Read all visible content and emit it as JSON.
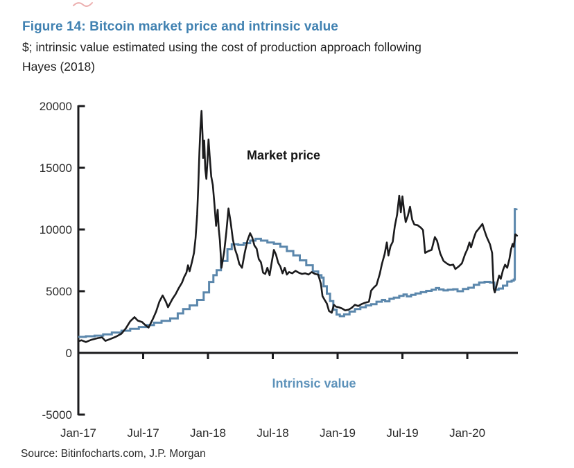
{
  "figure": {
    "title": "Figure 14: Bitcoin market price and intrinsic value",
    "subtitle_line1": "$; intrinsic value estimated using the cost of production approach following",
    "subtitle_line2": "Hayes (2018)",
    "source": "Source: Bitinfocharts.com, J.P. Morgan"
  },
  "colors": {
    "title_blue": "#4081b1",
    "market_price_line": "#1b1b1d",
    "intrinsic_value_line": "#5b87ac",
    "intrinsic_label_blue": "#5d92ba",
    "axis": "#1b1b1d",
    "text": "#2a2a2a",
    "scribble_red": "#dc7070"
  },
  "chart_data": {
    "type": "line",
    "title": "Figure 14: Bitcoin market price and intrinsic value",
    "subtitle": "$; intrinsic value estimated using the cost of production approach following Hayes (2018)",
    "unit": "$",
    "x_unit": "months since Jan-2017",
    "x_tick_months": [
      0,
      6,
      12,
      18,
      24,
      30,
      36
    ],
    "x_tick_labels": [
      "Jan-17",
      "Jul-17",
      "Jan-18",
      "Jul-18",
      "Jan-19",
      "Jul-19",
      "Jan-20"
    ],
    "x_end_month": 40.7,
    "y_ticks": [
      20000,
      15000,
      10000,
      5000,
      0,
      -5000
    ],
    "y_tick_labels": [
      "20000",
      "15000",
      "10000",
      "5000",
      "0",
      "-5000"
    ],
    "ylim": [
      -5000,
      20000
    ],
    "grid": false,
    "legend_position": "inline labels on plot",
    "annotations": [
      {
        "text": "Market price",
        "x_month": 15.6,
        "y_value": 15700,
        "color": "#151515"
      },
      {
        "text": "Intrinsic value",
        "x_month": 21.8,
        "y_value": -2810,
        "color": "#5d92ba"
      }
    ],
    "series": [
      {
        "name": "Market price",
        "color": "#1b1b1d",
        "style": "line",
        "points": [
          [
            0,
            950
          ],
          [
            0.3,
            1020
          ],
          [
            0.7,
            880
          ],
          [
            1.2,
            1060
          ],
          [
            1.8,
            1200
          ],
          [
            2.2,
            1260
          ],
          [
            2.5,
            980
          ],
          [
            3,
            1140
          ],
          [
            3.5,
            1320
          ],
          [
            4,
            1560
          ],
          [
            4.4,
            2000
          ],
          [
            4.8,
            2560
          ],
          [
            5.2,
            2900
          ],
          [
            5.5,
            2620
          ],
          [
            5.9,
            2500
          ],
          [
            6.2,
            2250
          ],
          [
            6.5,
            2050
          ],
          [
            6.9,
            2750
          ],
          [
            7.2,
            3350
          ],
          [
            7.5,
            4150
          ],
          [
            7.8,
            4660
          ],
          [
            8.1,
            4160
          ],
          [
            8.3,
            3700
          ],
          [
            8.7,
            4360
          ],
          [
            9,
            4760
          ],
          [
            9.3,
            5260
          ],
          [
            9.6,
            5700
          ],
          [
            9.8,
            6160
          ],
          [
            10,
            6500
          ],
          [
            10.15,
            7100
          ],
          [
            10.3,
            6620
          ],
          [
            10.5,
            7300
          ],
          [
            10.7,
            8100
          ],
          [
            10.85,
            9300
          ],
          [
            11,
            11200
          ],
          [
            11.1,
            13500
          ],
          [
            11.2,
            16200
          ],
          [
            11.3,
            18200
          ],
          [
            11.4,
            19600
          ],
          [
            11.5,
            17600
          ],
          [
            11.55,
            15800
          ],
          [
            11.65,
            17200
          ],
          [
            11.75,
            14900
          ],
          [
            11.85,
            14100
          ],
          [
            11.95,
            15500
          ],
          [
            12.05,
            17300
          ],
          [
            12.15,
            16000
          ],
          [
            12.3,
            14300
          ],
          [
            12.45,
            13600
          ],
          [
            12.6,
            12000
          ],
          [
            12.75,
            10300
          ],
          [
            12.9,
            11600
          ],
          [
            13,
            10000
          ],
          [
            13.1,
            9100
          ],
          [
            13.25,
            6900
          ],
          [
            13.5,
            8200
          ],
          [
            13.7,
            9800
          ],
          [
            13.9,
            11700
          ],
          [
            14.1,
            10600
          ],
          [
            14.3,
            9200
          ],
          [
            14.5,
            8400
          ],
          [
            14.7,
            7900
          ],
          [
            14.9,
            7200
          ],
          [
            15.15,
            6900
          ],
          [
            15.4,
            8100
          ],
          [
            15.65,
            9100
          ],
          [
            15.9,
            9700
          ],
          [
            16.1,
            9350
          ],
          [
            16.3,
            8700
          ],
          [
            16.5,
            8450
          ],
          [
            16.7,
            7600
          ],
          [
            16.9,
            7350
          ],
          [
            17.1,
            6500
          ],
          [
            17.3,
            6400
          ],
          [
            17.5,
            6900
          ],
          [
            17.7,
            6300
          ],
          [
            17.9,
            7350
          ],
          [
            18.1,
            8350
          ],
          [
            18.3,
            7950
          ],
          [
            18.5,
            7300
          ],
          [
            18.7,
            7000
          ],
          [
            18.9,
            6450
          ],
          [
            19.1,
            6900
          ],
          [
            19.3,
            6350
          ],
          [
            19.5,
            6550
          ],
          [
            19.8,
            6450
          ],
          [
            20.1,
            6650
          ],
          [
            20.4,
            6500
          ],
          [
            20.7,
            6400
          ],
          [
            21,
            6450
          ],
          [
            21.3,
            6350
          ],
          [
            21.6,
            6550
          ],
          [
            21.9,
            6400
          ],
          [
            22.2,
            6350
          ],
          [
            22.45,
            5600
          ],
          [
            22.6,
            4600
          ],
          [
            22.8,
            4300
          ],
          [
            23,
            4000
          ],
          [
            23.2,
            3400
          ],
          [
            23.45,
            3250
          ],
          [
            23.65,
            3900
          ],
          [
            23.85,
            3750
          ],
          [
            24.1,
            3700
          ],
          [
            24.4,
            3600
          ],
          [
            24.7,
            3450
          ],
          [
            25,
            3500
          ],
          [
            25.3,
            3650
          ],
          [
            25.6,
            3900
          ],
          [
            25.9,
            3800
          ],
          [
            26.2,
            3950
          ],
          [
            26.5,
            4050
          ],
          [
            26.9,
            4150
          ],
          [
            27.1,
            5050
          ],
          [
            27.35,
            5300
          ],
          [
            27.6,
            5500
          ],
          [
            27.9,
            6400
          ],
          [
            28.1,
            7200
          ],
          [
            28.35,
            8000
          ],
          [
            28.55,
            8950
          ],
          [
            28.7,
            7900
          ],
          [
            28.9,
            8650
          ],
          [
            29.1,
            9000
          ],
          [
            29.3,
            10300
          ],
          [
            29.5,
            11200
          ],
          [
            29.7,
            12740
          ],
          [
            29.85,
            11400
          ],
          [
            30,
            12680
          ],
          [
            30.15,
            11500
          ],
          [
            30.3,
            10600
          ],
          [
            30.5,
            11100
          ],
          [
            30.7,
            11850
          ],
          [
            30.9,
            10800
          ],
          [
            31.1,
            10400
          ],
          [
            31.4,
            10350
          ],
          [
            31.7,
            10150
          ],
          [
            31.9,
            9950
          ],
          [
            32.1,
            8100
          ],
          [
            32.4,
            8250
          ],
          [
            32.7,
            8350
          ],
          [
            33,
            9390
          ],
          [
            33.2,
            9100
          ],
          [
            33.5,
            8050
          ],
          [
            33.8,
            7450
          ],
          [
            34.1,
            7250
          ],
          [
            34.4,
            7100
          ],
          [
            34.7,
            7150
          ],
          [
            34.9,
            6800
          ],
          [
            35.2,
            7000
          ],
          [
            35.5,
            7260
          ],
          [
            35.8,
            8000
          ],
          [
            36,
            8400
          ],
          [
            36.2,
            8950
          ],
          [
            36.35,
            8550
          ],
          [
            36.6,
            9300
          ],
          [
            36.8,
            9780
          ],
          [
            37.1,
            10100
          ],
          [
            37.4,
            10450
          ],
          [
            37.6,
            9890
          ],
          [
            37.8,
            9390
          ],
          [
            38.1,
            8800
          ],
          [
            38.3,
            8100
          ],
          [
            38.45,
            5200
          ],
          [
            38.55,
            4900
          ],
          [
            38.75,
            5600
          ],
          [
            38.95,
            6260
          ],
          [
            39.1,
            6000
          ],
          [
            39.3,
            6700
          ],
          [
            39.5,
            7150
          ],
          [
            39.7,
            6900
          ],
          [
            39.9,
            7600
          ],
          [
            40.05,
            8400
          ],
          [
            40.2,
            8830
          ],
          [
            40.3,
            8600
          ],
          [
            40.45,
            9610
          ],
          [
            40.6,
            9500
          ]
        ]
      },
      {
        "name": "Intrinsic value",
        "color": "#5b87ac",
        "style": "step",
        "points": [
          [
            0,
            1300
          ],
          [
            0.7,
            1350
          ],
          [
            1.5,
            1400
          ],
          [
            2.3,
            1500
          ],
          [
            3.1,
            1650
          ],
          [
            4,
            1800
          ],
          [
            4.8,
            1950
          ],
          [
            5.6,
            2100
          ],
          [
            6.3,
            2250
          ],
          [
            7,
            2450
          ],
          [
            7.7,
            2600
          ],
          [
            8.5,
            2800
          ],
          [
            9.2,
            3200
          ],
          [
            9.7,
            3550
          ],
          [
            10.3,
            3850
          ],
          [
            11,
            4300
          ],
          [
            11.6,
            4900
          ],
          [
            12.1,
            5750
          ],
          [
            12.5,
            6300
          ],
          [
            12.8,
            6700
          ],
          [
            13.2,
            7450
          ],
          [
            13.8,
            8400
          ],
          [
            14.2,
            8800
          ],
          [
            14.8,
            8750
          ],
          [
            15.3,
            8900
          ],
          [
            15.9,
            9100
          ],
          [
            16.4,
            9250
          ],
          [
            16.9,
            9100
          ],
          [
            17.5,
            8950
          ],
          [
            18.1,
            8850
          ],
          [
            18.7,
            8600
          ],
          [
            19.3,
            8250
          ],
          [
            19.9,
            7900
          ],
          [
            20.5,
            7500
          ],
          [
            21.1,
            7100
          ],
          [
            21.7,
            6600
          ],
          [
            22.2,
            6300
          ],
          [
            22.5,
            6100
          ],
          [
            22.7,
            5400
          ],
          [
            23,
            4800
          ],
          [
            23.3,
            4200
          ],
          [
            23.6,
            3500
          ],
          [
            23.9,
            3100
          ],
          [
            24.2,
            2980
          ],
          [
            24.6,
            3120
          ],
          [
            25.1,
            3350
          ],
          [
            25.6,
            3550
          ],
          [
            26.1,
            3700
          ],
          [
            26.6,
            3850
          ],
          [
            27.1,
            3950
          ],
          [
            27.6,
            4150
          ],
          [
            28.1,
            4300
          ],
          [
            28.4,
            4180
          ],
          [
            28.8,
            4380
          ],
          [
            29.2,
            4480
          ],
          [
            29.7,
            4620
          ],
          [
            30.1,
            4730
          ],
          [
            30.4,
            4580
          ],
          [
            30.8,
            4700
          ],
          [
            31.2,
            4820
          ],
          [
            31.7,
            4920
          ],
          [
            32.2,
            5030
          ],
          [
            32.7,
            5120
          ],
          [
            33.1,
            5260
          ],
          [
            33.4,
            5140
          ],
          [
            33.8,
            5060
          ],
          [
            34.2,
            5120
          ],
          [
            34.7,
            5160
          ],
          [
            35.1,
            5000
          ],
          [
            35.6,
            5180
          ],
          [
            36.1,
            5280
          ],
          [
            36.6,
            5520
          ],
          [
            37.1,
            5700
          ],
          [
            37.6,
            5760
          ],
          [
            38.1,
            5700
          ],
          [
            38.5,
            5120
          ],
          [
            38.9,
            5220
          ],
          [
            39.3,
            5450
          ],
          [
            39.7,
            5780
          ],
          [
            40.1,
            5850
          ],
          [
            40.3,
            5950
          ],
          [
            40.4,
            11650
          ],
          [
            40.55,
            11700
          ]
        ]
      }
    ]
  }
}
